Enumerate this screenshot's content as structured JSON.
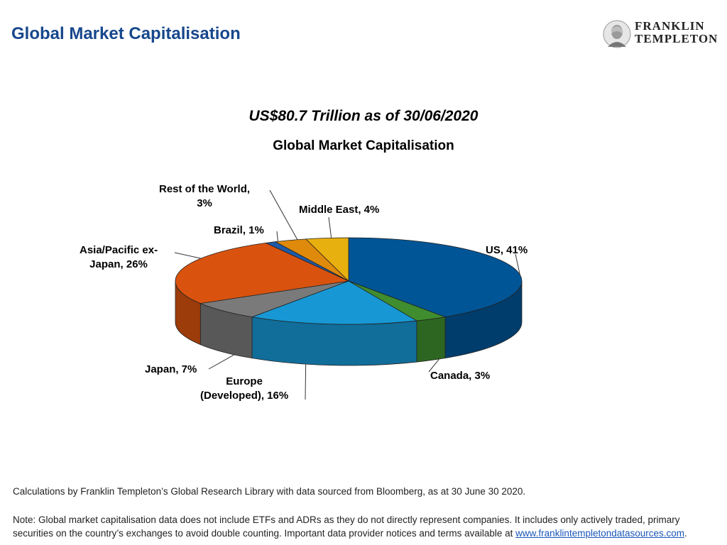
{
  "header": {
    "title": "Global Market Capitalisation",
    "logo_line1": "FRANKLIN",
    "logo_line2": "TEMPLETON"
  },
  "chart_data": {
    "type": "pie",
    "subtitle": "US$80.7 Trillion as of 30/06/2020",
    "title": "Global Market Capitalisation",
    "slices": [
      {
        "name": "US",
        "value": 41,
        "label": "US, 41%",
        "color": "#005596"
      },
      {
        "name": "Canada",
        "value": 3,
        "label": "Canada, 3%",
        "color": "#3f8d2e"
      },
      {
        "name": "Europe (Developed)",
        "value": 16,
        "label_line1": "Europe",
        "label_line2": "(Developed), 16%",
        "color": "#1798d4"
      },
      {
        "name": "Japan",
        "value": 7,
        "label": "Japan, 7%",
        "color": "#7a7a7a"
      },
      {
        "name": "Asia/Pacific ex-Japan",
        "value": 26,
        "label_line1": "Asia/Pacific ex-",
        "label_line2": "Japan, 26%",
        "color": "#d9530f"
      },
      {
        "name": "Brazil",
        "value": 1,
        "label": "Brazil, 1%",
        "color": "#1f5aa6"
      },
      {
        "name": "Rest of the World",
        "value": 3,
        "label_line1": "Rest of the World,",
        "label_line2": "3%",
        "color": "#e08a0b"
      },
      {
        "name": "Middle East",
        "value": 4,
        "label": "Middle East, 4%",
        "color": "#e8b00f"
      }
    ]
  },
  "footer": {
    "source": "Calculations by Franklin Templeton’s Global Research Library with data sourced from Bloomberg, as at 30 June 30 2020.",
    "note": "Note: Global market capitalisation data does not include ETFs and ADRs as they do not directly represent companies. It includes only actively traded, primary securities on the country’s exchanges to avoid double counting. Important data provider notices and terms available at ",
    "link_text": "www.franklintempletondatasources.com",
    "note_end": "."
  }
}
